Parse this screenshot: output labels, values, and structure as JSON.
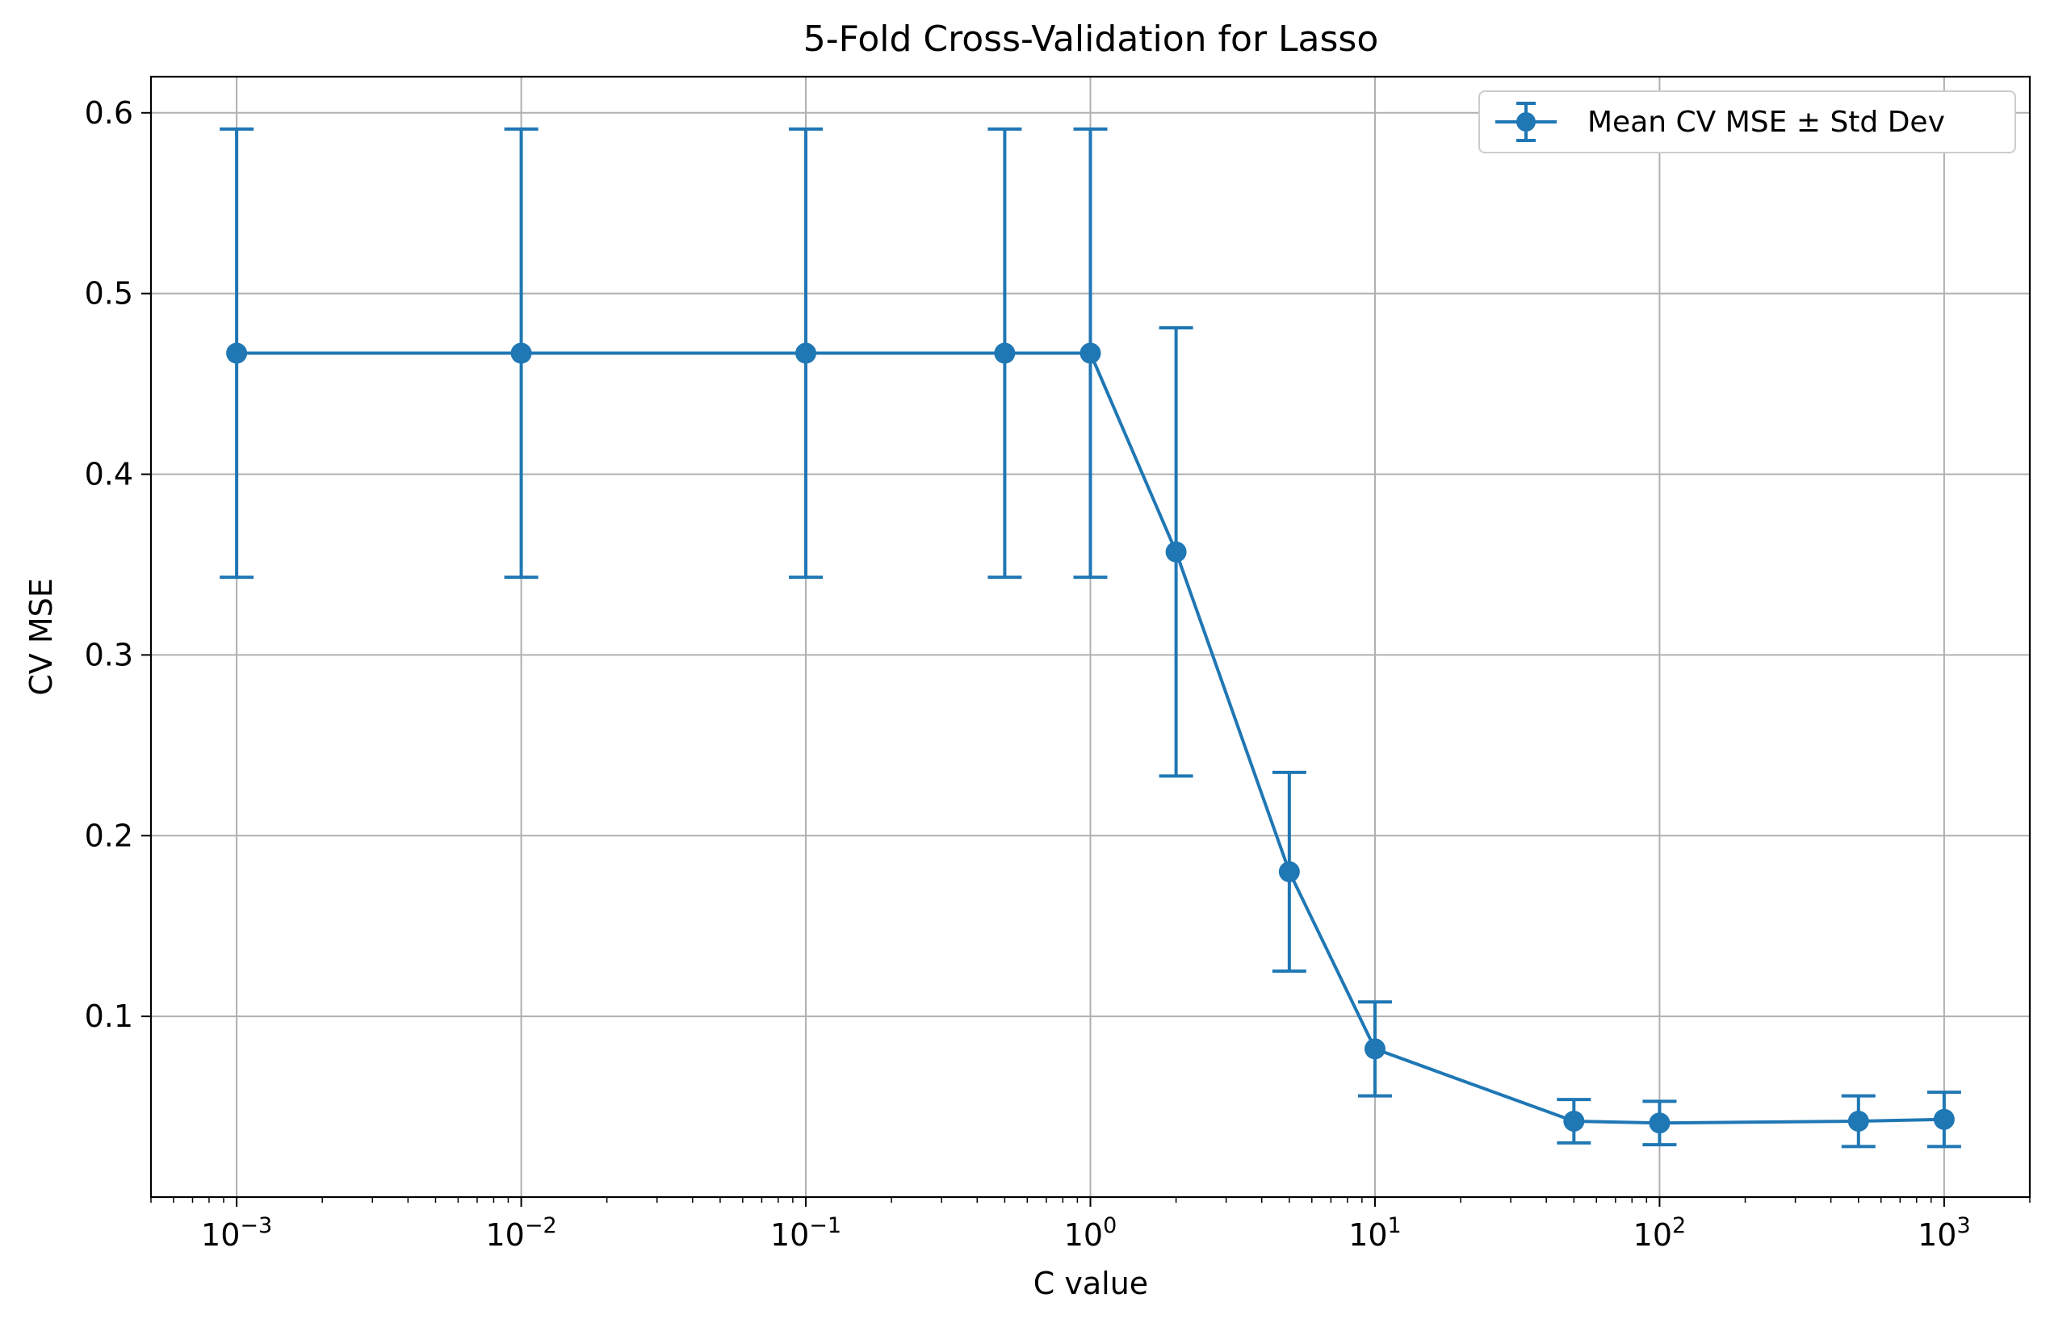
{
  "chart_data": {
    "type": "line",
    "title": "5-Fold Cross-Validation for Lasso",
    "xlabel": "C value",
    "ylabel": "CV MSE",
    "xscale": "log",
    "xlim": [
      0.0005,
      2000
    ],
    "ylim": [
      0.0,
      0.62
    ],
    "grid": true,
    "legend_position": "top-right",
    "x_ticks": [
      {
        "value": 0.001,
        "base": "10",
        "exp": "−3"
      },
      {
        "value": 0.01,
        "base": "10",
        "exp": "−2"
      },
      {
        "value": 0.1,
        "base": "10",
        "exp": "−1"
      },
      {
        "value": 1,
        "base": "10",
        "exp": "0"
      },
      {
        "value": 10,
        "base": "10",
        "exp": "1"
      },
      {
        "value": 100,
        "base": "10",
        "exp": "2"
      },
      {
        "value": 1000,
        "base": "10",
        "exp": "3"
      }
    ],
    "y_ticks": [
      {
        "value": 0.1,
        "label": "0.1"
      },
      {
        "value": 0.2,
        "label": "0.2"
      },
      {
        "value": 0.3,
        "label": "0.3"
      },
      {
        "value": 0.4,
        "label": "0.4"
      },
      {
        "value": 0.5,
        "label": "0.5"
      },
      {
        "value": 0.6,
        "label": "0.6"
      }
    ],
    "series": [
      {
        "name": "Mean CV MSE ± Std Dev",
        "color": "#1f77b4",
        "x": [
          0.001,
          0.01,
          0.1,
          0.5,
          1,
          2,
          5,
          10,
          50,
          100,
          500,
          1000
        ],
        "y": [
          0.467,
          0.467,
          0.467,
          0.467,
          0.467,
          0.357,
          0.18,
          0.082,
          0.042,
          0.041,
          0.042,
          0.043
        ],
        "err": [
          0.124,
          0.124,
          0.124,
          0.124,
          0.124,
          0.124,
          0.055,
          0.026,
          0.012,
          0.012,
          0.014,
          0.015
        ]
      }
    ]
  }
}
